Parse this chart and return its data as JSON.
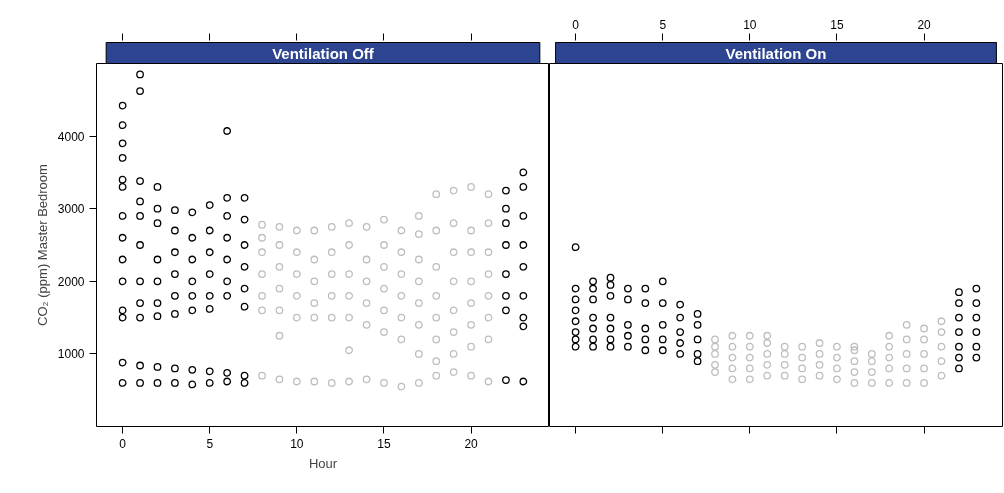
{
  "chart_data": [
    {
      "type": "scatter",
      "title": "Ventilation Off",
      "xlabel": "Hour",
      "ylabel": "CO₂ (ppm) Master Bedroom",
      "xlim": [
        -1.5,
        24.5
      ],
      "ylim": [
        0,
        5000
      ],
      "xticks": [
        0,
        5,
        10,
        15,
        20
      ],
      "yticks": [
        1000,
        2000,
        3000,
        4000
      ],
      "marker": "circle",
      "grid": false,
      "series": [
        {
          "color": "#000000",
          "x": [
            0,
            0,
            0,
            0,
            0,
            0,
            0,
            0,
            0,
            0,
            0,
            0,
            0,
            0,
            1,
            1,
            1,
            1,
            1,
            1,
            1,
            1,
            1,
            1,
            1,
            2,
            2,
            2,
            2,
            2,
            2,
            2,
            2,
            2,
            3,
            3,
            3,
            3,
            3,
            3,
            3,
            3,
            4,
            4,
            4,
            4,
            4,
            4,
            4,
            4,
            5,
            5,
            5,
            5,
            5,
            5,
            5,
            5,
            6,
            6,
            6,
            6,
            6,
            6,
            6,
            6,
            6,
            7,
            7,
            7,
            7,
            7,
            7,
            7,
            7,
            22,
            22,
            22,
            22,
            22,
            22,
            22,
            22,
            23,
            23,
            23,
            23,
            23,
            23,
            23,
            23,
            23
          ],
          "values": [
            600,
            880,
            1500,
            1600,
            2000,
            2300,
            2600,
            2900,
            3300,
            3400,
            3700,
            3900,
            4150,
            4420,
            600,
            840,
            1500,
            1700,
            2000,
            2500,
            2900,
            3100,
            3380,
            4620,
            4850,
            600,
            820,
            1520,
            1700,
            2000,
            2300,
            2800,
            3000,
            3300,
            600,
            800,
            1550,
            1800,
            2100,
            2400,
            2700,
            2980,
            580,
            780,
            1600,
            1800,
            2000,
            2300,
            2600,
            2950,
            600,
            760,
            1620,
            1800,
            2100,
            2400,
            2700,
            3050,
            620,
            740,
            1800,
            2000,
            2300,
            2600,
            2900,
            3150,
            4070,
            600,
            700,
            1650,
            1900,
            2200,
            2500,
            2850,
            3150,
            640,
            1600,
            1800,
            2100,
            2500,
            2800,
            3000,
            3250,
            620,
            1380,
            1500,
            1800,
            2200,
            2500,
            2900,
            3300,
            3500
          ]
        },
        {
          "color": "#bebebe",
          "x": [
            8,
            8,
            8,
            8,
            8,
            8,
            8,
            9,
            9,
            9,
            9,
            9,
            9,
            9,
            10,
            10,
            10,
            10,
            10,
            10,
            11,
            11,
            11,
            11,
            11,
            11,
            12,
            12,
            12,
            12,
            12,
            12,
            13,
            13,
            13,
            13,
            13,
            13,
            13,
            14,
            14,
            14,
            14,
            14,
            14,
            15,
            15,
            15,
            15,
            15,
            15,
            15,
            16,
            16,
            16,
            16,
            16,
            16,
            16,
            17,
            17,
            17,
            17,
            17,
            17,
            17,
            17,
            18,
            18,
            18,
            18,
            18,
            18,
            18,
            18,
            19,
            19,
            19,
            19,
            19,
            19,
            19,
            19,
            20,
            20,
            20,
            20,
            20,
            20,
            20,
            20,
            21,
            21,
            21,
            21,
            21,
            21,
            21,
            21
          ],
          "values": [
            700,
            1600,
            1800,
            2100,
            2400,
            2600,
            2780,
            650,
            1250,
            1600,
            1900,
            2200,
            2500,
            2750,
            620,
            1500,
            1800,
            2100,
            2400,
            2700,
            620,
            1500,
            1700,
            2000,
            2300,
            2700,
            600,
            1500,
            1800,
            2100,
            2400,
            2750,
            620,
            1050,
            1500,
            1800,
            2100,
            2500,
            2800,
            650,
            1400,
            1700,
            2000,
            2300,
            2750,
            600,
            1300,
            1600,
            1900,
            2200,
            2500,
            2850,
            550,
            1200,
            1500,
            1800,
            2100,
            2400,
            2700,
            600,
            1000,
            1400,
            1700,
            2000,
            2300,
            2650,
            2900,
            700,
            900,
            1200,
            1500,
            1800,
            2200,
            2700,
            3200,
            750,
            1000,
            1300,
            1600,
            2000,
            2400,
            2800,
            3250,
            700,
            1100,
            1400,
            1700,
            2000,
            2400,
            2700,
            3300,
            620,
            1200,
            1500,
            1800,
            2100,
            2400,
            2800,
            3200
          ]
        }
      ]
    },
    {
      "type": "scatter",
      "title": "Ventilation On",
      "xlim": [
        -1.5,
        24.5
      ],
      "ylim": [
        0,
        5000
      ],
      "xticks": [
        0,
        5,
        10,
        15,
        20
      ],
      "tick_labels": "x",
      "marker": "circle",
      "grid": false,
      "series": [
        {
          "color": "#000000",
          "x": [
            0,
            0,
            0,
            0,
            0,
            0,
            0,
            0,
            1,
            1,
            1,
            1,
            1,
            1,
            1,
            2,
            2,
            2,
            2,
            2,
            2,
            2,
            3,
            3,
            3,
            3,
            3,
            4,
            4,
            4,
            4,
            4,
            5,
            5,
            5,
            5,
            5,
            6,
            6,
            6,
            6,
            6,
            7,
            7,
            7,
            7,
            7,
            22,
            22,
            22,
            22,
            22,
            22,
            22,
            23,
            23,
            23,
            23,
            23,
            23
          ],
          "values": [
            1100,
            1200,
            1300,
            1450,
            1600,
            1750,
            1900,
            2470,
            1100,
            1200,
            1350,
            1500,
            1750,
            1900,
            2000,
            1100,
            1200,
            1350,
            1500,
            1800,
            1950,
            2050,
            1100,
            1250,
            1400,
            1750,
            1900,
            1050,
            1200,
            1350,
            1700,
            1900,
            1050,
            1200,
            1400,
            1700,
            2000,
            1000,
            1150,
            1300,
            1500,
            1680,
            900,
            1000,
            1200,
            1400,
            1550,
            800,
            950,
            1100,
            1300,
            1500,
            1700,
            1850,
            950,
            1100,
            1300,
            1500,
            1700,
            1900
          ]
        },
        {
          "color": "#bebebe",
          "x": [
            8,
            8,
            8,
            8,
            8,
            9,
            9,
            9,
            9,
            9,
            10,
            10,
            10,
            10,
            10,
            11,
            11,
            11,
            11,
            11,
            12,
            12,
            12,
            12,
            13,
            13,
            13,
            13,
            14,
            14,
            14,
            14,
            15,
            15,
            15,
            15,
            16,
            16,
            16,
            16,
            16,
            17,
            17,
            17,
            17,
            18,
            18,
            18,
            18,
            18,
            19,
            19,
            19,
            19,
            19,
            20,
            20,
            20,
            20,
            20,
            21,
            21,
            21,
            21,
            21
          ],
          "values": [
            750,
            850,
            1000,
            1100,
            1200,
            650,
            800,
            950,
            1100,
            1250,
            650,
            800,
            950,
            1100,
            1250,
            700,
            850,
            1000,
            1150,
            1250,
            700,
            850,
            1000,
            1100,
            650,
            800,
            950,
            1100,
            700,
            850,
            1000,
            1150,
            650,
            800,
            950,
            1100,
            600,
            750,
            900,
            1050,
            1100,
            600,
            750,
            900,
            1000,
            600,
            800,
            950,
            1100,
            1250,
            600,
            800,
            1000,
            1200,
            1400,
            600,
            800,
            1000,
            1200,
            1350,
            700,
            900,
            1100,
            1300,
            1450
          ]
        }
      ]
    }
  ]
}
